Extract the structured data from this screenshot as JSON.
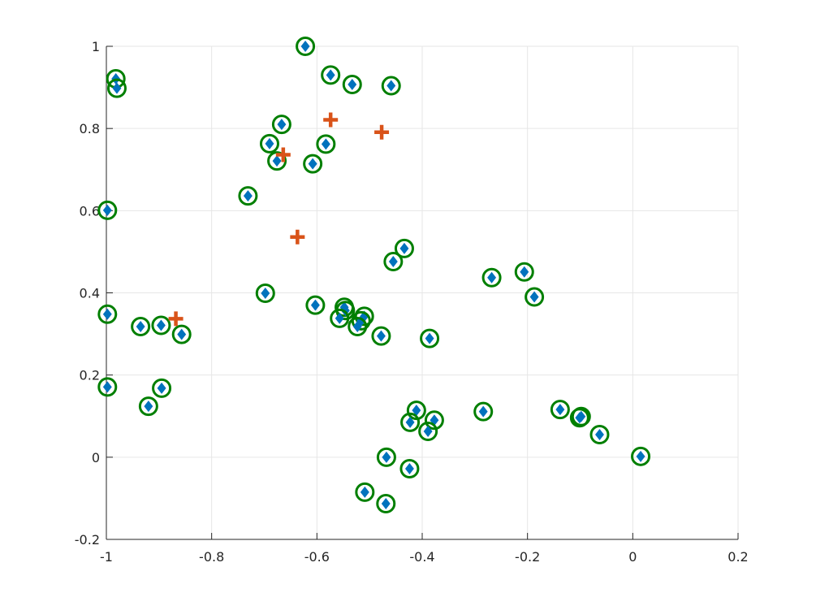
{
  "chart_data": {
    "type": "scatter",
    "xlim": [
      -1,
      0.2
    ],
    "ylim": [
      -0.2,
      1
    ],
    "xticks": [
      -1,
      -0.8,
      -0.6,
      -0.4,
      -0.2,
      0,
      0.2
    ],
    "yticks": [
      -0.2,
      0,
      0.2,
      0.4,
      0.6,
      0.8,
      1
    ],
    "xtick_labels": [
      "-1",
      "-0.8",
      "-0.6",
      "-0.4",
      "-0.2",
      "0",
      "0.2"
    ],
    "ytick_labels": [
      "-0.2",
      "0",
      "0.2",
      "0.4",
      "0.6",
      "0.8",
      "1"
    ],
    "grid": true,
    "colors": {
      "points": "#0072BD",
      "rings": "#007F00",
      "centers": "#D95319",
      "grid": "#e6e6e6",
      "axes": "#262626"
    },
    "series": [
      {
        "marker": "diamond-in-circle",
        "points": [
          [
            -0.622,
            1.0
          ],
          [
            -0.574,
            0.93
          ],
          [
            -0.533,
            0.907
          ],
          [
            -0.459,
            0.904
          ],
          [
            -0.982,
            0.921
          ],
          [
            -0.98,
            0.898
          ],
          [
            -0.667,
            0.81
          ],
          [
            -0.69,
            0.763
          ],
          [
            -0.676,
            0.721
          ],
          [
            -0.583,
            0.762
          ],
          [
            -0.608,
            0.714
          ],
          [
            -0.731,
            0.636
          ],
          [
            -0.998,
            0.601
          ],
          [
            -0.434,
            0.508
          ],
          [
            -0.455,
            0.476
          ],
          [
            -0.268,
            0.437
          ],
          [
            -0.206,
            0.451
          ],
          [
            -0.187,
            0.39
          ],
          [
            -0.698,
            0.399
          ],
          [
            -0.603,
            0.37
          ],
          [
            -0.548,
            0.365
          ],
          [
            -0.546,
            0.357
          ],
          [
            -0.557,
            0.338
          ],
          [
            -0.51,
            0.343
          ],
          [
            -0.516,
            0.332
          ],
          [
            -0.523,
            0.318
          ],
          [
            -0.478,
            0.295
          ],
          [
            -0.386,
            0.289
          ],
          [
            -0.998,
            0.348
          ],
          [
            -0.935,
            0.318
          ],
          [
            -0.896,
            0.321
          ],
          [
            -0.857,
            0.299
          ],
          [
            -0.998,
            0.171
          ],
          [
            -0.895,
            0.168
          ],
          [
            -0.92,
            0.124
          ],
          [
            -0.284,
            0.111
          ],
          [
            -0.138,
            0.116
          ],
          [
            -0.098,
            0.099
          ],
          [
            -0.101,
            0.096
          ],
          [
            -0.063,
            0.055
          ],
          [
            -0.411,
            0.114
          ],
          [
            -0.423,
            0.085
          ],
          [
            -0.377,
            0.09
          ],
          [
            -0.389,
            0.063
          ],
          [
            0.015,
            0.002
          ],
          [
            -0.468,
            0.0
          ],
          [
            -0.424,
            -0.028
          ],
          [
            -0.509,
            -0.085
          ],
          [
            -0.469,
            -0.113
          ]
        ]
      },
      {
        "marker": "plus",
        "points": [
          [
            -0.574,
            0.821
          ],
          [
            -0.477,
            0.791
          ],
          [
            -0.664,
            0.736
          ],
          [
            -0.637,
            0.536
          ],
          [
            -0.868,
            0.337
          ]
        ]
      }
    ]
  }
}
